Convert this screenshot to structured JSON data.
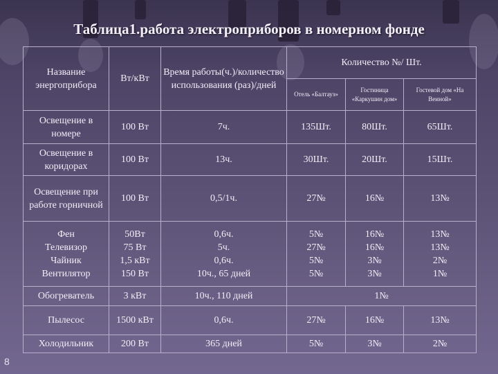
{
  "title": "Таблица1.работа электроприборов в номерном фонде",
  "slide_number": "8",
  "header": {
    "name": "Название энергоприбора",
    "power": "Вт/кВт",
    "time": "Время работы(ч.)/количество использования (раз)/дней",
    "quantity": "Количество №/ Шт.",
    "hotel1": "Отель «Балтауз»",
    "hotel2": "Гостиница «Каркушин дом»",
    "hotel3": "Гостевой дом «На Веиной»"
  },
  "rows": [
    {
      "name": "Освещение в номере",
      "power": "100 Вт",
      "time": "7ч.",
      "h1": "135Шт.",
      "h2": "80Шт.",
      "h3": "65Шт."
    },
    {
      "name": "Освещение в коридорах",
      "power": "100 Вт",
      "time": "13ч.",
      "h1": "30Шт.",
      "h2": "20Шт.",
      "h3": "15Шт."
    },
    {
      "name": "Освещение при работе горничной",
      "power": "100 Вт",
      "time": "0,5/1ч.",
      "h1": "27№",
      "h2": "16№",
      "h3": "13№"
    },
    {
      "name": "Фен",
      "power": "50Вт",
      "time": "0,6ч.",
      "h1": "5№",
      "h2": "16№",
      "h3": "13№"
    },
    {
      "name": "Телевизор",
      "power": "75 Вт",
      "time": "5ч.",
      "h1": "27№",
      "h2": "16№",
      "h3": "13№"
    },
    {
      "name": "Чайник",
      "power": "1,5 кВт",
      "time": "0,6ч.",
      "h1": "5№",
      "h2": "3№",
      "h3": "2№"
    },
    {
      "name": "Вентилятор",
      "power": "150 Вт",
      "time": "10ч., 65 дней",
      "h1": "5№",
      "h2": "3№",
      "h3": "1№"
    },
    {
      "name": "Обогреватель",
      "power": "3 кВт",
      "time": "10ч., 110 дней",
      "merged": "1№"
    },
    {
      "name": "Пылесос",
      "power": "1500 кВт",
      "time": "0,6ч.",
      "h1": "27№",
      "h2": "16№",
      "h3": "13№"
    },
    {
      "name": "Холодильник",
      "power": "200 Вт",
      "time": "365 дней",
      "h1": "5№",
      "h2": "3№",
      "h3": "2№"
    }
  ]
}
